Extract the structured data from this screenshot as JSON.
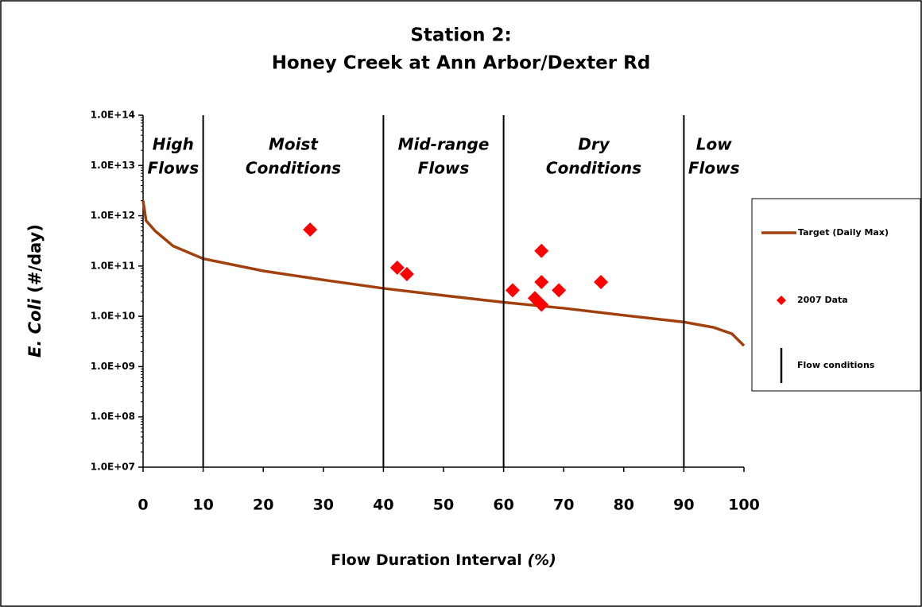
{
  "chart_data": {
    "type": "load-duration",
    "title": [
      "Station 2:",
      "Honey Creek at Ann Arbor/Dexter Rd"
    ],
    "x_label": [
      "Flow Duration Interval",
      "(%)"
    ],
    "y_label": [
      "E. Coli",
      "(#/day)"
    ],
    "xlim": [
      0,
      100
    ],
    "xticks": [
      0,
      10,
      20,
      30,
      40,
      50,
      60,
      70,
      80,
      90,
      100
    ],
    "ylim": [
      10000000,
      100000000000000
    ],
    "yticks": [
      {
        "value": 10000000,
        "label": "1.0E+07"
      },
      {
        "value": 100000000,
        "label": "1.0E+08"
      },
      {
        "value": 1000000000,
        "label": "1.0E+09"
      },
      {
        "value": 10000000000,
        "label": "1.0E+10"
      },
      {
        "value": 100000000000,
        "label": "1.0E+11"
      },
      {
        "value": 1000000000000,
        "label": "1.0E+12"
      },
      {
        "value": 10000000000000,
        "label": "1.0E+13"
      },
      {
        "value": 100000000000000,
        "label": "1.0E+14"
      }
    ],
    "log_y": true,
    "zones": [
      [
        "High",
        "Flows"
      ],
      [
        "Moist",
        "Conditions"
      ],
      [
        "Mid-range",
        "Flows"
      ],
      [
        "Dry",
        "Conditions"
      ],
      [
        "Low",
        "Flows"
      ]
    ],
    "series": [
      {
        "name": "Target (Daily Max)",
        "kind": "line",
        "color": "#a0410d",
        "x": [
          0,
          0.5,
          2,
          5,
          10,
          20,
          30,
          40,
          50,
          60,
          70,
          80,
          90,
          95,
          98,
          100
        ],
        "values": [
          2000000000000,
          800000000000,
          500000000000,
          250000000000,
          140000000000,
          80000000000,
          53000000000,
          36000000000,
          26000000000,
          19000000000,
          14500000000,
          10500000000,
          7700000000,
          6000000000,
          4500000000,
          2600000000
        ]
      },
      {
        "name": "2007 Data",
        "kind": "scatter",
        "color": "#ff0000",
        "x": [
          27.8,
          42.3,
          43.9,
          61.5,
          65.2,
          66.3,
          66.3,
          66.3,
          69.2,
          76.2
        ],
        "values": [
          530000000000,
          93000000000,
          69000000000,
          33000000000,
          23000000000,
          17000000000,
          200000000000,
          48000000000,
          33000000000,
          48000000000
        ]
      },
      {
        "name": "Flow conditions",
        "kind": "vline",
        "color": "#000000",
        "x": [
          10,
          40,
          60,
          90
        ]
      }
    ]
  }
}
